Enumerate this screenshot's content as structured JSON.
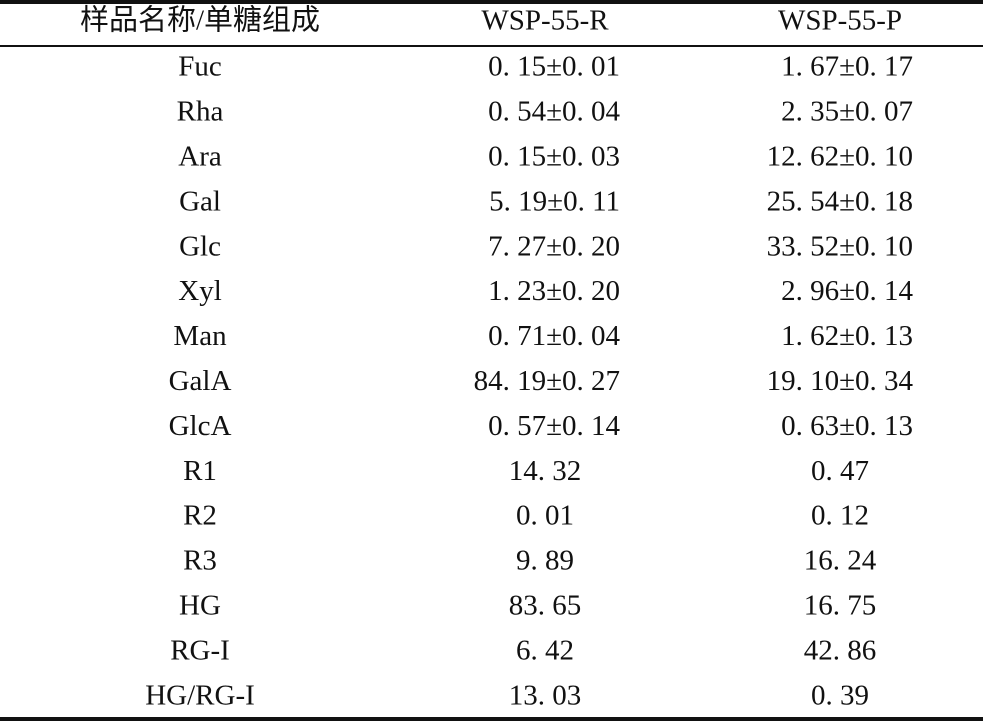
{
  "table": {
    "header": [
      "样品名称/单糖组成",
      "WSP-55-R",
      "WSP-55-P"
    ],
    "rows": [
      [
        "Fuc",
        "0. 15±0. 01",
        "1. 67±0. 17"
      ],
      [
        "Rha",
        "0. 54±0. 04",
        "2. 35±0. 07"
      ],
      [
        "Ara",
        "0. 15±0. 03",
        "12. 62±0. 10"
      ],
      [
        "Gal",
        "5. 19±0. 11",
        "25. 54±0. 18"
      ],
      [
        "Glc",
        "7. 27±0. 20",
        "33. 52±0. 10"
      ],
      [
        "Xyl",
        "1. 23±0. 20",
        "2. 96±0. 14"
      ],
      [
        "Man",
        "0. 71±0. 04",
        "1. 62±0. 13"
      ],
      [
        "GalA",
        "84. 19±0. 27",
        "19. 10±0. 34"
      ],
      [
        "GlcA",
        "0. 57±0. 14",
        "0. 63±0. 13"
      ],
      [
        "R1",
        "14. 32",
        "0. 47"
      ],
      [
        "R2",
        "0. 01",
        "0. 12"
      ],
      [
        "R3",
        "9. 89",
        "16. 24"
      ],
      [
        "HG",
        "83. 65",
        "16. 75"
      ],
      [
        "RG-I",
        "6. 42",
        "42. 86"
      ],
      [
        "HG/RG-I",
        "13. 03",
        "0. 39"
      ]
    ]
  }
}
